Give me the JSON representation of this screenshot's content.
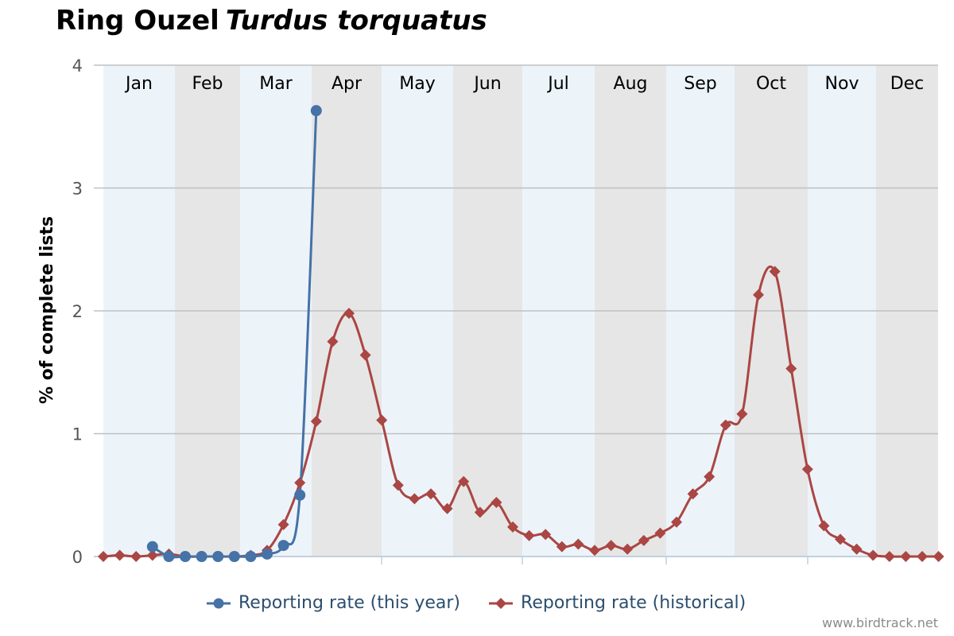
{
  "title": {
    "common_name": "Ring Ouzel",
    "scientific_name": "Turdus torquatus"
  },
  "credit": "www.birdtrack.net",
  "colors": {
    "this_year": "#4572a7",
    "historical": "#aa4643",
    "band_light": "#ecf4fa",
    "band_dark": "#e6e6e6",
    "grid": "#c0c0c0"
  },
  "chart_data": {
    "type": "line",
    "ylabel": "% of complete lists",
    "ylim": [
      0,
      4
    ],
    "yticks": [
      "0",
      "1",
      "2",
      "3",
      "4"
    ],
    "months": [
      "Jan",
      "Feb",
      "Mar",
      "Apr",
      "May",
      "Jun",
      "Jul",
      "Aug",
      "Sep",
      "Oct",
      "Nov",
      "Dec"
    ],
    "x_unit": "week of year (1-52)",
    "legend_position": "bottom-center",
    "series": [
      {
        "name": "Reporting rate (this year)",
        "marker": "circle",
        "x": [
          4,
          5,
          6,
          7,
          8,
          9,
          10,
          11,
          12,
          13,
          14
        ],
        "y": [
          0.08,
          0.0,
          0.0,
          0.0,
          0.0,
          0.0,
          0.0,
          0.02,
          0.09,
          0.5,
          3.63
        ]
      },
      {
        "name": "Reporting rate (historical)",
        "marker": "diamond",
        "x": [
          1,
          2,
          3,
          4,
          5,
          6,
          7,
          8,
          9,
          10,
          11,
          12,
          13,
          14,
          15,
          16,
          17,
          18,
          19,
          20,
          21,
          22,
          23,
          24,
          25,
          26,
          27,
          28,
          29,
          30,
          31,
          32,
          33,
          34,
          35,
          36,
          37,
          38,
          39,
          40,
          41,
          42,
          43,
          44,
          45,
          46,
          47,
          48,
          49,
          50,
          51,
          52
        ],
        "y": [
          0.0,
          0.01,
          0.0,
          0.01,
          0.02,
          0.0,
          0.0,
          0.0,
          0.0,
          0.01,
          0.05,
          0.26,
          0.6,
          1.1,
          1.75,
          1.98,
          1.64,
          1.11,
          0.58,
          0.47,
          0.51,
          0.39,
          0.61,
          0.36,
          0.44,
          0.24,
          0.17,
          0.18,
          0.08,
          0.1,
          0.05,
          0.09,
          0.06,
          0.13,
          0.19,
          0.28,
          0.51,
          0.65,
          1.07,
          1.16,
          2.13,
          2.32,
          1.53,
          0.71,
          0.25,
          0.14,
          0.06,
          0.01,
          0.0,
          0.0,
          0.0,
          0.0
        ]
      }
    ]
  }
}
